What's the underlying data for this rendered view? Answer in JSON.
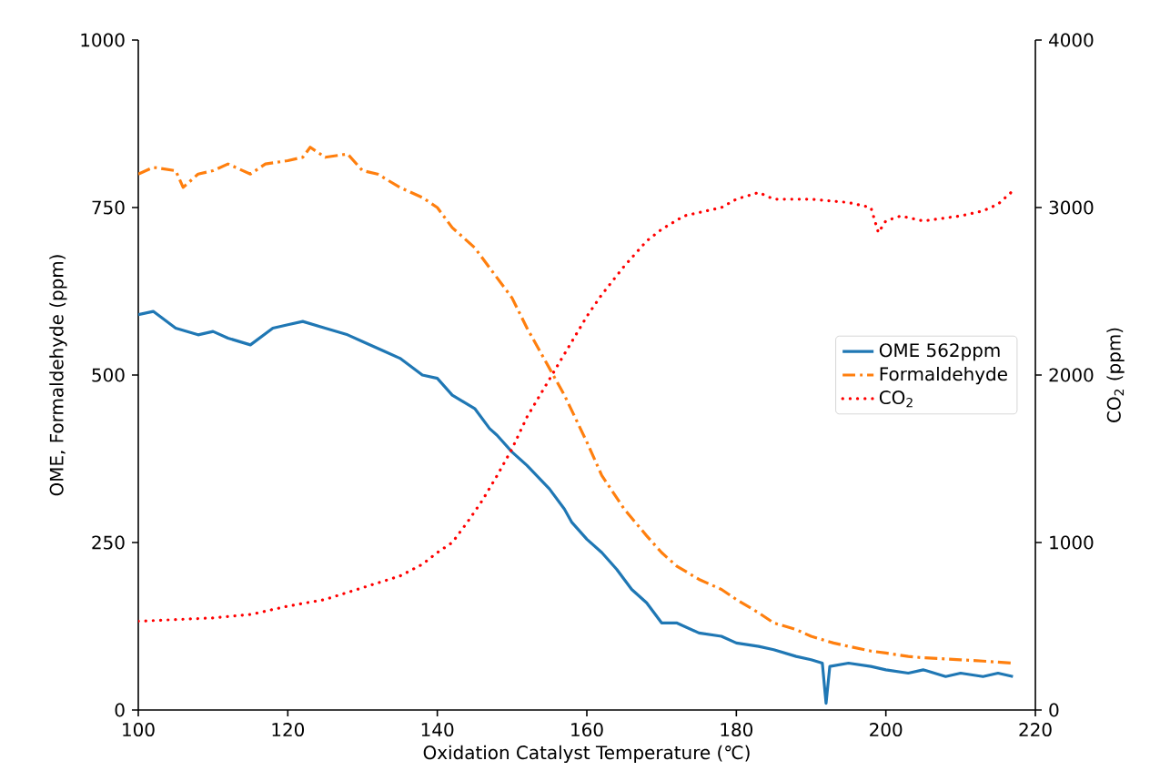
{
  "chart_data": {
    "type": "line",
    "xlabel": "Oxidation Catalyst Temperature (℃)",
    "ylabel": "OME, Formaldehyde (ppm)",
    "y2label": "CO$_{2}$ (ppm)",
    "xlim": [
      100,
      220
    ],
    "xticks": [
      100,
      120,
      140,
      160,
      180,
      200,
      220
    ],
    "ylim": [
      0,
      1000
    ],
    "yticks": [
      0,
      250,
      500,
      750,
      1000
    ],
    "y2lim": [
      0,
      4000
    ],
    "y2ticks": [
      0,
      1000,
      2000,
      3000,
      4000
    ],
    "legend": "right",
    "grid": false,
    "series": [
      {
        "name": "OME 562ppm",
        "color": "#1f77b4",
        "line_style": "solid",
        "x": [
          100,
          102,
          105,
          108,
          110,
          112,
          115,
          118,
          120,
          122,
          125,
          128,
          130,
          133,
          135,
          138,
          140,
          142,
          145,
          147,
          148,
          150,
          152,
          155,
          157,
          158,
          160,
          162,
          164,
          166,
          168,
          170,
          172,
          175,
          178,
          180,
          183,
          185,
          188,
          190,
          191.5,
          192,
          192.5,
          195,
          198,
          200,
          203,
          205,
          208,
          210,
          213,
          215,
          217
        ],
        "values": [
          590,
          595,
          570,
          560,
          565,
          555,
          545,
          570,
          575,
          580,
          570,
          560,
          550,
          535,
          525,
          500,
          495,
          470,
          450,
          420,
          410,
          385,
          365,
          330,
          300,
          280,
          255,
          235,
          210,
          180,
          160,
          130,
          130,
          115,
          110,
          100,
          95,
          90,
          80,
          75,
          70,
          10,
          65,
          70,
          65,
          60,
          55,
          60,
          50,
          55,
          50,
          55,
          50
        ]
      },
      {
        "name": "Formaldehyde",
        "color": "#ff7f0e",
        "line_style": "dashdot",
        "x": [
          100,
          102,
          105,
          106,
          108,
          110,
          112,
          115,
          117,
          120,
          122,
          123,
          125,
          128,
          130,
          132,
          135,
          138,
          140,
          142,
          145,
          147,
          150,
          152,
          155,
          157,
          160,
          162,
          165,
          168,
          170,
          172,
          175,
          178,
          180,
          183,
          185,
          188,
          190,
          193,
          195,
          198,
          200,
          203,
          205,
          210,
          213,
          217
        ],
        "values": [
          800,
          810,
          805,
          780,
          800,
          805,
          815,
          800,
          815,
          820,
          825,
          840,
          825,
          830,
          805,
          800,
          780,
          765,
          750,
          720,
          690,
          660,
          615,
          570,
          510,
          470,
          400,
          350,
          300,
          260,
          235,
          215,
          195,
          180,
          165,
          145,
          130,
          120,
          110,
          100,
          95,
          88,
          85,
          80,
          78,
          75,
          73,
          70
        ]
      },
      {
        "name": "CO$_{2}$",
        "color": "#ff0000",
        "line_style": "dotted",
        "axis": "y2",
        "x": [
          100,
          105,
          110,
          115,
          120,
          125,
          130,
          135,
          138,
          140,
          142,
          144,
          146,
          148,
          150,
          152,
          154,
          156,
          158,
          160,
          162,
          165,
          168,
          170,
          173,
          175,
          178,
          180,
          183,
          185,
          190,
          195,
          198,
          199,
          200,
          202,
          205,
          210,
          213,
          215,
          217
        ],
        "values": [
          530,
          540,
          550,
          570,
          620,
          660,
          730,
          800,
          870,
          940,
          1000,
          1120,
          1250,
          1400,
          1560,
          1750,
          1900,
          2050,
          2200,
          2350,
          2480,
          2650,
          2800,
          2870,
          2950,
          2970,
          3000,
          3050,
          3090,
          3050,
          3050,
          3030,
          3000,
          2850,
          2920,
          2950,
          2920,
          2950,
          2980,
          3020,
          3100
        ]
      }
    ]
  }
}
